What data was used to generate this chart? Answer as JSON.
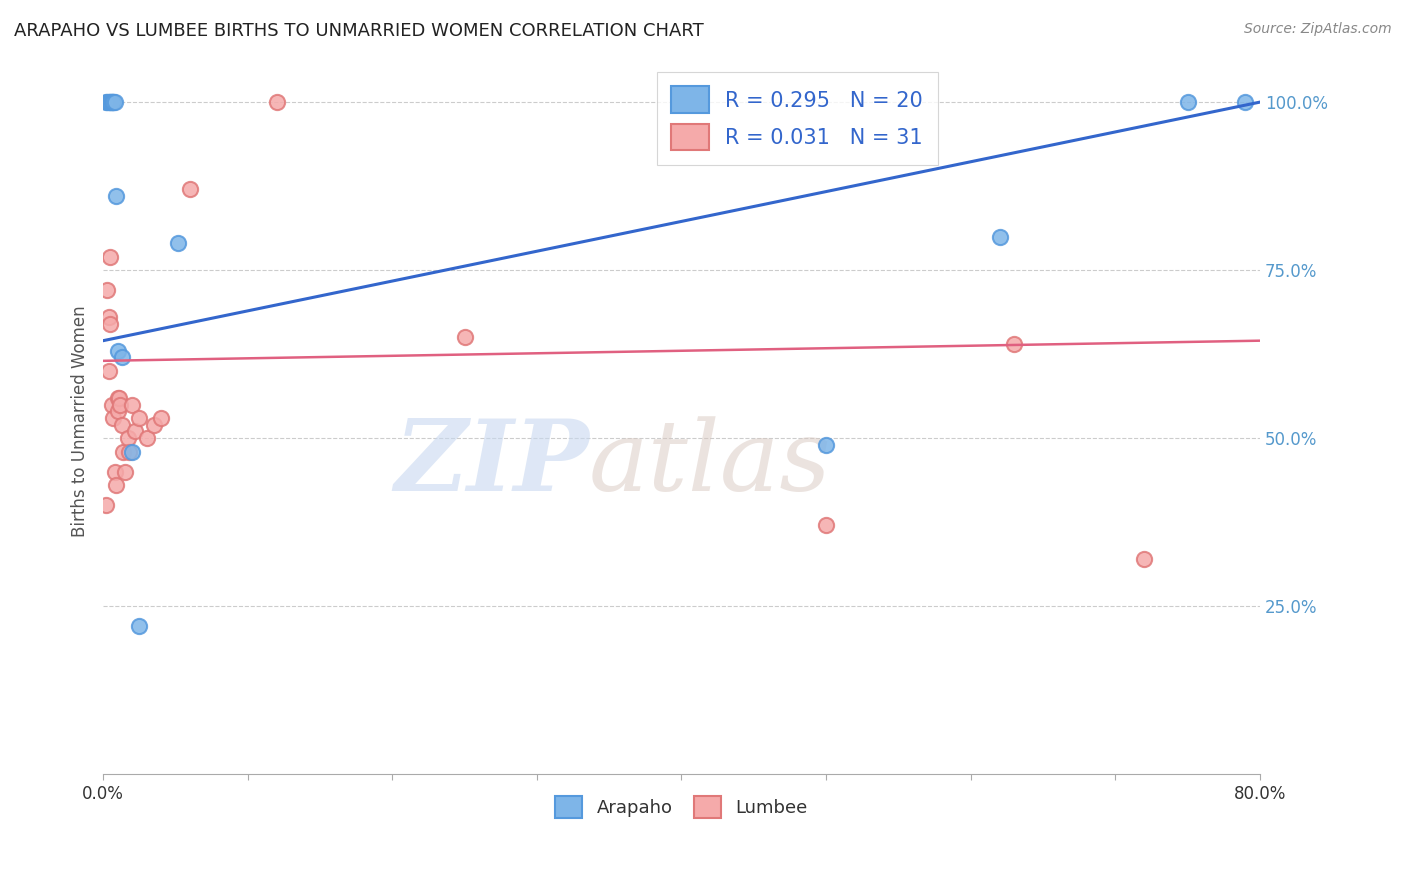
{
  "title": "ARAPAHO VS LUMBEE BIRTHS TO UNMARRIED WOMEN CORRELATION CHART",
  "source": "Source: ZipAtlas.com",
  "ylabel": "Births to Unmarried Women",
  "xlim": [
    0.0,
    0.8
  ],
  "ylim": [
    0.0,
    1.05
  ],
  "yticks": [
    0.25,
    0.5,
    0.75,
    1.0
  ],
  "ytick_labels": [
    "25.0%",
    "50.0%",
    "75.0%",
    "100.0%"
  ],
  "watermark_zip": "ZIP",
  "watermark_atlas": "atlas",
  "arapaho_color": "#7EB5E8",
  "arapaho_edge": "#5599DD",
  "lumbee_color": "#F5AAAA",
  "lumbee_edge": "#E07878",
  "arapaho_line_color": "#3366CC",
  "lumbee_line_color": "#E06080",
  "arapaho_R": 0.295,
  "arapaho_N": 20,
  "lumbee_R": 0.031,
  "lumbee_N": 31,
  "arapaho_x": [
    0.002,
    0.003,
    0.004,
    0.005,
    0.005,
    0.006,
    0.006,
    0.007,
    0.007,
    0.008,
    0.009,
    0.01,
    0.013,
    0.02,
    0.025,
    0.052,
    0.5,
    0.62,
    0.75,
    0.79
  ],
  "arapaho_y": [
    1.0,
    1.0,
    1.0,
    1.0,
    1.0,
    1.0,
    1.0,
    1.0,
    1.0,
    1.0,
    0.86,
    0.63,
    0.62,
    0.48,
    0.22,
    0.79,
    0.49,
    0.8,
    1.0,
    1.0
  ],
  "lumbee_x": [
    0.002,
    0.003,
    0.004,
    0.004,
    0.005,
    0.005,
    0.006,
    0.007,
    0.008,
    0.009,
    0.01,
    0.01,
    0.011,
    0.012,
    0.013,
    0.014,
    0.015,
    0.017,
    0.018,
    0.02,
    0.022,
    0.025,
    0.03,
    0.035,
    0.04,
    0.06,
    0.12,
    0.25,
    0.5,
    0.63,
    0.72
  ],
  "lumbee_y": [
    0.4,
    0.72,
    0.68,
    0.6,
    0.77,
    0.67,
    0.55,
    0.53,
    0.45,
    0.43,
    0.56,
    0.54,
    0.56,
    0.55,
    0.52,
    0.48,
    0.45,
    0.5,
    0.48,
    0.55,
    0.51,
    0.53,
    0.5,
    0.52,
    0.53,
    0.87,
    1.0,
    0.65,
    0.37,
    0.64,
    0.32
  ],
  "grid_color": "#CCCCCC",
  "background_color": "#FFFFFF",
  "marker_size": 120,
  "marker_lw": 1.5,
  "arapaho_line_y0": 0.645,
  "arapaho_line_y1": 1.0,
  "lumbee_line_y0": 0.615,
  "lumbee_line_y1": 0.645
}
